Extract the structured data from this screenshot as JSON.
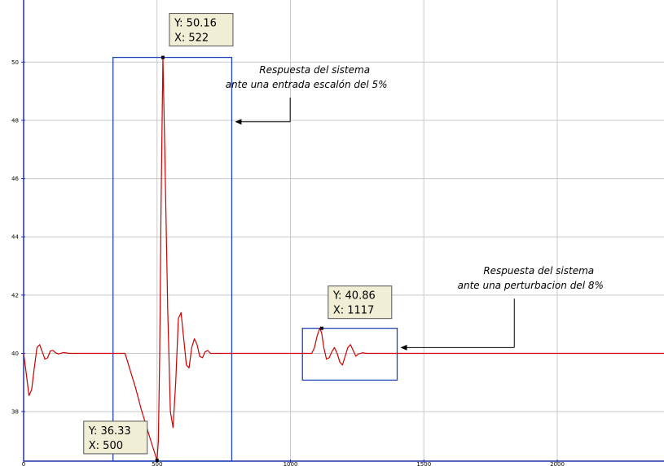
{
  "chart_data": {
    "type": "line",
    "title": "",
    "xlabel": "",
    "ylabel": "",
    "xlim": [
      0,
      2400
    ],
    "ylim": [
      36.3,
      50.4
    ],
    "grid": true,
    "x_ticks": [
      0,
      500,
      1000,
      1500,
      2000
    ],
    "x_tick_labels": [
      "0",
      "500",
      "1000",
      "1500",
      "2000"
    ],
    "y_ticks": [
      38,
      40,
      42,
      44,
      46,
      48,
      50
    ],
    "y_tick_labels": [
      "38",
      "40",
      "42",
      "44",
      "46",
      "48",
      "50"
    ],
    "series": [
      {
        "color": "#cc0000",
        "x": [
          0,
          10,
          20,
          30,
          40,
          50,
          60,
          70,
          80,
          90,
          100,
          110,
          120,
          130,
          150,
          170,
          200,
          250,
          300,
          350,
          380,
          400,
          420,
          440,
          460,
          480,
          500,
          505,
          510,
          515,
          522,
          530,
          540,
          550,
          560,
          570,
          580,
          590,
          600,
          610,
          620,
          630,
          640,
          650,
          660,
          670,
          680,
          690,
          700,
          720,
          740,
          760,
          780,
          800,
          1000,
          1080,
          1090,
          1100,
          1110,
          1117,
          1125,
          1135,
          1145,
          1155,
          1165,
          1175,
          1185,
          1195,
          1205,
          1215,
          1225,
          1235,
          1245,
          1255,
          1270,
          1285,
          1300,
          1320,
          1350,
          1380,
          1400,
          1600,
          1800,
          2000,
          2200,
          2400
        ],
        "y": [
          40.0,
          39.3,
          38.55,
          38.75,
          39.5,
          40.2,
          40.3,
          40.05,
          39.8,
          39.85,
          40.08,
          40.1,
          40.02,
          39.98,
          40.03,
          40.0,
          40.0,
          40.0,
          40.0,
          40.0,
          40.0,
          39.4,
          38.8,
          38.1,
          37.5,
          36.9,
          36.33,
          37.0,
          40.0,
          45.0,
          50.16,
          46.5,
          41.5,
          38.0,
          37.45,
          39.0,
          41.2,
          41.4,
          40.5,
          39.6,
          39.5,
          40.2,
          40.5,
          40.3,
          39.9,
          39.85,
          40.05,
          40.1,
          40.0,
          40.0,
          40.0,
          40.0,
          40.0,
          40.0,
          40.0,
          40.0,
          40.2,
          40.6,
          40.86,
          40.7,
          40.2,
          39.8,
          39.85,
          40.05,
          40.2,
          40.0,
          39.7,
          39.6,
          39.9,
          40.2,
          40.3,
          40.1,
          39.9,
          39.98,
          40.02,
          40.0,
          40.0,
          40.0,
          40.0,
          40.0,
          40.0,
          40.0,
          40.0,
          40.0,
          40.0,
          40.0
        ]
      }
    ],
    "highlight_boxes": [
      {
        "x0": 335,
        "x1": 780,
        "y0": 36.3,
        "y1": 50.16,
        "color": "#2244bb"
      },
      {
        "x0": 1045,
        "x1": 1400,
        "y0": 39.08,
        "y1": 40.86,
        "color": "#2244bb"
      }
    ],
    "datatips": [
      {
        "x": 522,
        "y": 50.16,
        "y_text": "Y: 50.16",
        "x_text": "X: 522"
      },
      {
        "x": 500,
        "y": 36.33,
        "y_text": "Y: 36.33",
        "x_text": "X: 500"
      },
      {
        "x": 1117,
        "y": 40.86,
        "y_text": "Y: 40.86",
        "x_text": "X: 1117"
      }
    ],
    "annotations": [
      {
        "lines": [
          "Respuesta del sistema",
          "ante una entrada escalón del 5%"
        ],
        "anchor_x": 1060,
        "anchor_y": 48.5,
        "arrow_to_x": 780,
        "arrow_to_y": 47.95
      },
      {
        "lines": [
          "Respuesta del sistema",
          "ante una perturbacion del  8%"
        ],
        "anchor_x": 1900,
        "anchor_y": 41.6,
        "arrow_to_x": 1400,
        "arrow_to_y": 40.2
      }
    ]
  }
}
